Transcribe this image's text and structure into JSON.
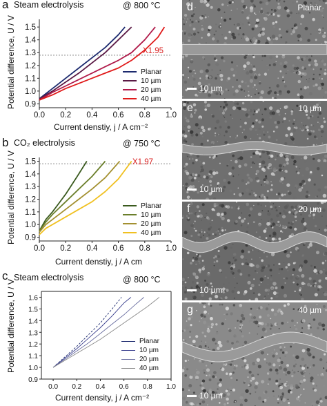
{
  "chart_data": [
    {
      "panel": "a",
      "title": "Steam electrolysis",
      "temperature": "@ 800 °C",
      "type": "line",
      "xlabel": "Current denstiy, j / A cm⁻²",
      "ylabel": "Potential difference, U / V",
      "xlim": [
        0.0,
        1.0
      ],
      "ylim": [
        0.87,
        1.56
      ],
      "xticks": [
        "0.0",
        "0.2",
        "0.4",
        "0.6",
        "0.8",
        "1.0"
      ],
      "yticks": [
        "0.9",
        "1.0",
        "1.1",
        "1.2",
        "1.3",
        "1.4",
        "1.5"
      ],
      "reference_line_y": 1.28,
      "annotation": "X1.95",
      "legend_position": "bottom-right",
      "series": [
        {
          "name": "Planar",
          "color": "#1c2a6e",
          "x": [
            0,
            0.1,
            0.2,
            0.3,
            0.4,
            0.5,
            0.6,
            0.65
          ],
          "y": [
            0.94,
            1.02,
            1.1,
            1.18,
            1.26,
            1.34,
            1.44,
            1.5
          ]
        },
        {
          "name": "10 µm",
          "color": "#5a1a45",
          "x": [
            0,
            0.1,
            0.2,
            0.3,
            0.4,
            0.5,
            0.6,
            0.7
          ],
          "y": [
            0.94,
            1.0,
            1.07,
            1.14,
            1.22,
            1.3,
            1.4,
            1.5
          ]
        },
        {
          "name": "20 µm",
          "color": "#b01a4a",
          "x": [
            0,
            0.1,
            0.2,
            0.3,
            0.4,
            0.5,
            0.6,
            0.7,
            0.8,
            0.88
          ],
          "y": [
            0.93,
            0.99,
            1.04,
            1.09,
            1.14,
            1.19,
            1.24,
            1.3,
            1.4,
            1.5
          ]
        },
        {
          "name": "40 µm",
          "color": "#e01a1a",
          "x": [
            0,
            0.1,
            0.2,
            0.3,
            0.4,
            0.5,
            0.6,
            0.7,
            0.8,
            0.9,
            0.95
          ],
          "y": [
            0.93,
            0.97,
            1.02,
            1.06,
            1.1,
            1.14,
            1.18,
            1.24,
            1.32,
            1.42,
            1.5
          ]
        }
      ]
    },
    {
      "panel": "b",
      "title": "CO₂ electrolysis",
      "temperature": "@ 750 °C",
      "type": "line",
      "xlabel": "Current denstiy, j / A cm",
      "ylabel": "Potential difference, U / V",
      "xlim": [
        0.0,
        1.0
      ],
      "ylim": [
        0.87,
        1.53
      ],
      "xticks": [
        "0.0",
        "0.2",
        "0.4",
        "0.6",
        "0.8",
        "1.0"
      ],
      "yticks": [
        "0.9",
        "1.0",
        "1.1",
        "1.2",
        "1.3",
        "1.4",
        "1.5"
      ],
      "reference_line_y": 1.48,
      "annotation": "X1.97",
      "legend_position": "bottom-right",
      "series": [
        {
          "name": "Planar",
          "color": "#3a5a1e",
          "x": [
            0,
            0.05,
            0.1,
            0.15,
            0.2,
            0.25,
            0.3,
            0.36
          ],
          "y": [
            0.95,
            1.04,
            1.1,
            1.17,
            1.24,
            1.32,
            1.4,
            1.5
          ]
        },
        {
          "name": "10 µm",
          "color": "#6a7e2a",
          "x": [
            0,
            0.05,
            0.1,
            0.2,
            0.3,
            0.4,
            0.5
          ],
          "y": [
            0.95,
            1.02,
            1.08,
            1.18,
            1.28,
            1.38,
            1.5
          ]
        },
        {
          "name": "20 µm",
          "color": "#a39030",
          "x": [
            0,
            0.05,
            0.1,
            0.2,
            0.3,
            0.4,
            0.5,
            0.61
          ],
          "y": [
            0.94,
            1.0,
            1.04,
            1.12,
            1.2,
            1.28,
            1.37,
            1.5
          ]
        },
        {
          "name": "40 µm",
          "color": "#f0c020",
          "x": [
            0,
            0.05,
            0.1,
            0.2,
            0.3,
            0.4,
            0.5,
            0.6,
            0.7
          ],
          "y": [
            0.92,
            0.97,
            1.0,
            1.06,
            1.12,
            1.18,
            1.26,
            1.36,
            1.5
          ]
        }
      ]
    },
    {
      "panel": "c",
      "title": "Steam electrolysis",
      "temperature": "@ 800 °C",
      "type": "line",
      "xlabel": "Current density, j / A cm⁻²",
      "ylabel": "Potential difference, U / V",
      "xlim": [
        -0.1,
        1.0
      ],
      "ylim": [
        0.9,
        1.65
      ],
      "xticks": [
        "0.0",
        "0.2",
        "0.4",
        "0.6",
        "0.8",
        "1.0"
      ],
      "yticks": [
        "0.9",
        "1.0",
        "1.1",
        "1.2",
        "1.3",
        "1.4",
        "1.5",
        "1.6"
      ],
      "legend_position": "bottom-right",
      "series": [
        {
          "name": "Planar",
          "color": "#1c2a6e",
          "dash": "3,2",
          "x": [
            0,
            0.1,
            0.2,
            0.3,
            0.4,
            0.5,
            0.58
          ],
          "y": [
            1.0,
            1.09,
            1.18,
            1.28,
            1.38,
            1.5,
            1.6
          ]
        },
        {
          "name": "10 µm",
          "color": "#3a3f8e",
          "dash": "",
          "x": [
            0,
            0.1,
            0.2,
            0.3,
            0.4,
            0.5,
            0.6,
            0.66
          ],
          "y": [
            1.0,
            1.08,
            1.16,
            1.25,
            1.34,
            1.44,
            1.55,
            1.6
          ]
        },
        {
          "name": "20 µm",
          "color": "#6a6ea0",
          "dash": "",
          "x": [
            0,
            0.1,
            0.2,
            0.3,
            0.4,
            0.5,
            0.6,
            0.7,
            0.77
          ],
          "y": [
            1.0,
            1.07,
            1.14,
            1.21,
            1.29,
            1.37,
            1.45,
            1.54,
            1.6
          ]
        },
        {
          "name": "40 µm",
          "color": "#8a8a8a",
          "dash": "",
          "x": [
            0,
            0.1,
            0.2,
            0.3,
            0.4,
            0.5,
            0.6,
            0.7,
            0.8,
            0.9
          ],
          "y": [
            1.0,
            1.06,
            1.12,
            1.18,
            1.24,
            1.31,
            1.38,
            1.45,
            1.52,
            1.6
          ]
        }
      ]
    }
  ],
  "micrographs": [
    {
      "letter": "d",
      "label": "Planar",
      "scale": "10 µm"
    },
    {
      "letter": "e",
      "label": "10 µm",
      "scale": "10 µm"
    },
    {
      "letter": "f",
      "label": "20 µm",
      "scale": "10 µm"
    },
    {
      "letter": "g",
      "label": "40 µm",
      "scale": "10 µm"
    }
  ]
}
